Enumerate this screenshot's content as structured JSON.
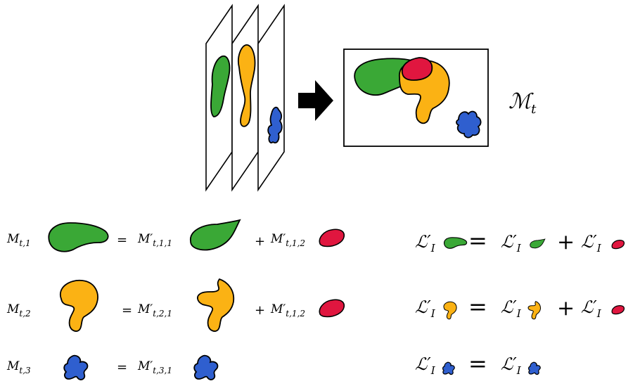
{
  "colors": {
    "green": "#3aa836",
    "yellow": "#fbb214",
    "red": "#e0163f",
    "blue": "#2f5fcf",
    "stroke": "#000000"
  },
  "composite_label": {
    "symbol": "ℳ",
    "sub": "t"
  },
  "equations": [
    {
      "lhs": {
        "main": "M",
        "sub": "t,1"
      },
      "eq": "=",
      "rhs1": {
        "main": "M′",
        "sub": "t,1,1"
      },
      "plus": "+",
      "rhs2": {
        "main": "M′",
        "sub": "t,1,2"
      }
    },
    {
      "lhs": {
        "main": "M",
        "sub": "t,2"
      },
      "eq": "=",
      "rhs1": {
        "main": "M′",
        "sub": "t,2,1"
      },
      "plus": "+",
      "rhs2": {
        "main": "M′",
        "sub": "t,1,2"
      }
    },
    {
      "lhs": {
        "main": "M",
        "sub": "t,3"
      },
      "eq": "=",
      "rhs1": {
        "main": "M′",
        "sub": "t,3,1"
      }
    }
  ],
  "loss_equations": [
    {
      "lhs": "ℒ′",
      "sub": "I",
      "eq": "=",
      "plus": "+"
    },
    {
      "lhs": "ℒ′",
      "sub": "I",
      "eq": "=",
      "plus": "+"
    },
    {
      "lhs": "ℒ′",
      "sub": "I",
      "eq": "="
    }
  ]
}
